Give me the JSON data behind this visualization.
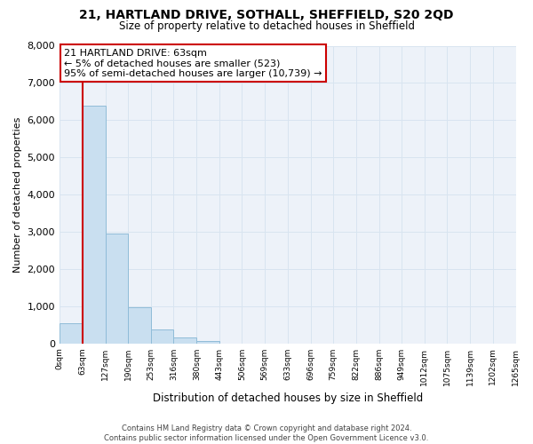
{
  "title": "21, HARTLAND DRIVE, SOTHALL, SHEFFIELD, S20 2QD",
  "subtitle": "Size of property relative to detached houses in Sheffield",
  "bar_heights": [
    550,
    6400,
    2950,
    980,
    380,
    160,
    60,
    0,
    0,
    0,
    0,
    0,
    0,
    0,
    0,
    0,
    0,
    0,
    0,
    0
  ],
  "bin_edges": [
    0,
    63,
    127,
    190,
    253,
    316,
    380,
    443,
    506,
    569,
    633,
    696,
    759,
    822,
    886,
    949,
    1012,
    1075,
    1139,
    1202,
    1265
  ],
  "tick_labels": [
    "0sqm",
    "63sqm",
    "127sqm",
    "190sqm",
    "253sqm",
    "316sqm",
    "380sqm",
    "443sqm",
    "506sqm",
    "569sqm",
    "633sqm",
    "696sqm",
    "759sqm",
    "822sqm",
    "886sqm",
    "949sqm",
    "1012sqm",
    "1075sqm",
    "1139sqm",
    "1202sqm",
    "1265sqm"
  ],
  "ylabel": "Number of detached properties",
  "xlabel": "Distribution of detached houses by size in Sheffield",
  "ylim": [
    0,
    8000
  ],
  "yticks": [
    0,
    1000,
    2000,
    3000,
    4000,
    5000,
    6000,
    7000,
    8000
  ],
  "bar_color": "#c9dff0",
  "bar_edge_color": "#90bcd8",
  "grid_color": "#d8e4f0",
  "background_color": "#edf2f9",
  "annotation_box_title": "21 HARTLAND DRIVE: 63sqm",
  "annotation_line1": "← 5% of detached houses are smaller (523)",
  "annotation_line2": "95% of semi-detached houses are larger (10,739) →",
  "box_color": "#ffffff",
  "box_edge_color": "#cc0000",
  "vline_x": 63,
  "vline_color": "#cc0000",
  "footer_line1": "Contains HM Land Registry data © Crown copyright and database right 2024.",
  "footer_line2": "Contains public sector information licensed under the Open Government Licence v3.0."
}
